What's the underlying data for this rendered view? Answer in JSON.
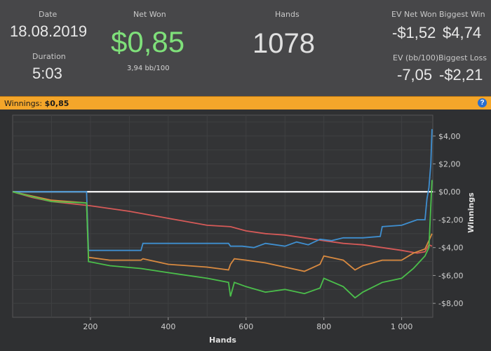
{
  "stats": {
    "date_label": "Date",
    "date_value": "18.08.2019",
    "duration_label": "Duration",
    "duration_value": "5:03",
    "net_won_label": "Net Won",
    "net_won_value": "$0,85",
    "net_won_sub": "3,94 bb/100",
    "hands_label": "Hands",
    "hands_value": "1078",
    "ev_net_won_label": "EV Net Won",
    "ev_net_won_value": "-$1,52",
    "biggest_win_label": "Biggest Win",
    "biggest_win_value": "$4,74",
    "ev_bb_label": "EV (bb/100)",
    "ev_bb_value": "-7,05",
    "biggest_loss_label": "Biggest Loss",
    "biggest_loss_value": "-$2,21"
  },
  "winbar": {
    "label": "Winnings:",
    "value": "$0,85",
    "help_icon": "help-icon"
  },
  "chart_data": {
    "type": "line",
    "xlabel": "Hands",
    "ylabel": "Winnings",
    "xlim": [
      0,
      1080
    ],
    "ylim": [
      -9,
      5.5
    ],
    "x_ticks": [
      200,
      400,
      600,
      800,
      1000
    ],
    "x_tick_labels": [
      "200",
      "400",
      "600",
      "800",
      "1 000"
    ],
    "y_ticks": [
      4,
      2,
      0,
      -2,
      -4,
      -6,
      -8
    ],
    "y_tick_labels": [
      "$4,00",
      "$2,00",
      "$0,00",
      "-$2,00",
      "-$4,00",
      "-$6,00",
      "-$8,00"
    ],
    "grid": true,
    "series": [
      {
        "color": "#ffffff",
        "points": [
          [
            0,
            0
          ],
          [
            1080,
            0
          ]
        ]
      },
      {
        "color": "#d65a58",
        "points": [
          [
            0,
            0
          ],
          [
            50,
            -0.4
          ],
          [
            100,
            -0.7
          ],
          [
            200,
            -1.0
          ],
          [
            300,
            -1.4
          ],
          [
            400,
            -1.9
          ],
          [
            500,
            -2.4
          ],
          [
            560,
            -2.5
          ],
          [
            600,
            -2.8
          ],
          [
            650,
            -3.0
          ],
          [
            700,
            -3.1
          ],
          [
            750,
            -3.3
          ],
          [
            800,
            -3.5
          ],
          [
            850,
            -3.7
          ],
          [
            900,
            -3.8
          ],
          [
            950,
            -4.0
          ],
          [
            1000,
            -4.2
          ],
          [
            1040,
            -4.4
          ],
          [
            1060,
            -4.3
          ],
          [
            1070,
            -3.8
          ],
          [
            1078,
            -3.9
          ]
        ]
      },
      {
        "color": "#3f8fd0",
        "points": [
          [
            0,
            0
          ],
          [
            100,
            0
          ],
          [
            190,
            0
          ],
          [
            195,
            -4.2
          ],
          [
            330,
            -4.2
          ],
          [
            335,
            -3.7
          ],
          [
            555,
            -3.7
          ],
          [
            560,
            -3.9
          ],
          [
            590,
            -3.9
          ],
          [
            620,
            -4.0
          ],
          [
            650,
            -3.7
          ],
          [
            700,
            -3.9
          ],
          [
            730,
            -3.6
          ],
          [
            760,
            -3.8
          ],
          [
            790,
            -3.4
          ],
          [
            820,
            -3.5
          ],
          [
            850,
            -3.3
          ],
          [
            900,
            -3.3
          ],
          [
            945,
            -3.2
          ],
          [
            950,
            -2.5
          ],
          [
            1000,
            -2.4
          ],
          [
            1040,
            -2.0
          ],
          [
            1060,
            -2.0
          ],
          [
            1065,
            -0.5
          ],
          [
            1070,
            0.3
          ],
          [
            1075,
            2.0
          ],
          [
            1078,
            4.5
          ]
        ]
      },
      {
        "color": "#d98a40",
        "points": [
          [
            0,
            0
          ],
          [
            100,
            -0.6
          ],
          [
            190,
            -0.8
          ],
          [
            195,
            -4.7
          ],
          [
            250,
            -4.9
          ],
          [
            330,
            -4.9
          ],
          [
            335,
            -4.8
          ],
          [
            400,
            -5.2
          ],
          [
            500,
            -5.4
          ],
          [
            555,
            -5.6
          ],
          [
            560,
            -5.2
          ],
          [
            570,
            -4.8
          ],
          [
            600,
            -4.9
          ],
          [
            650,
            -5.1
          ],
          [
            700,
            -5.4
          ],
          [
            750,
            -5.7
          ],
          [
            790,
            -5.2
          ],
          [
            800,
            -4.6
          ],
          [
            850,
            -4.9
          ],
          [
            880,
            -5.6
          ],
          [
            900,
            -5.3
          ],
          [
            950,
            -4.9
          ],
          [
            1000,
            -4.9
          ],
          [
            1030,
            -4.4
          ],
          [
            1060,
            -4.1
          ],
          [
            1070,
            -3.5
          ],
          [
            1078,
            -3.0
          ]
        ]
      },
      {
        "color": "#4bbf4b",
        "points": [
          [
            0,
            0
          ],
          [
            100,
            -0.7
          ],
          [
            190,
            -0.8
          ],
          [
            195,
            -5.0
          ],
          [
            250,
            -5.3
          ],
          [
            330,
            -5.5
          ],
          [
            400,
            -5.8
          ],
          [
            500,
            -6.2
          ],
          [
            555,
            -6.5
          ],
          [
            560,
            -7.5
          ],
          [
            570,
            -6.5
          ],
          [
            600,
            -6.8
          ],
          [
            650,
            -7.2
          ],
          [
            700,
            -7.0
          ],
          [
            750,
            -7.3
          ],
          [
            790,
            -6.9
          ],
          [
            800,
            -6.2
          ],
          [
            850,
            -6.8
          ],
          [
            880,
            -7.6
          ],
          [
            900,
            -7.2
          ],
          [
            950,
            -6.5
          ],
          [
            1000,
            -6.2
          ],
          [
            1030,
            -5.5
          ],
          [
            1060,
            -4.6
          ],
          [
            1070,
            -4.0
          ],
          [
            1075,
            -1.0
          ],
          [
            1078,
            0.85
          ]
        ]
      }
    ]
  }
}
